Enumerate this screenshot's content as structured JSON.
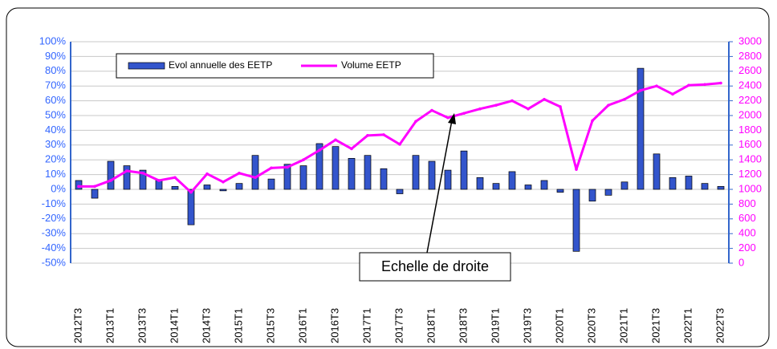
{
  "chart_data": {
    "type": "bar-line",
    "categories": [
      "2012T3",
      null,
      "2013T1",
      null,
      "2013T3",
      null,
      "2014T1",
      null,
      "2014T3",
      null,
      "2015T1",
      null,
      "2015T3",
      null,
      "2016T1",
      null,
      "2016T3",
      null,
      "2017T1",
      null,
      "2017T3",
      null,
      "2018T1",
      null,
      "2018T3",
      null,
      "2019T1",
      null,
      "2019T3",
      null,
      "2020T1",
      null,
      "2020T3",
      null,
      "2021T1",
      null,
      "2021T3",
      null,
      "2022T1",
      null,
      "2022T3"
    ],
    "series": [
      {
        "name": "Evol annuelle des EETP",
        "type": "bar",
        "color": "#3355cc",
        "axis": "y",
        "values": [
          6,
          -6,
          19,
          16,
          13,
          6,
          2,
          -24,
          3,
          -1,
          4,
          23,
          7,
          17,
          16,
          31,
          29,
          21,
          23,
          14,
          -3,
          23,
          19,
          13,
          26,
          8,
          4,
          12,
          3,
          6,
          -2,
          -42,
          -8,
          -4,
          5,
          82,
          24,
          8,
          9,
          4,
          2
        ]
      },
      {
        "name": "Volume EETP",
        "type": "line",
        "color": "#ff00ff",
        "axis": "y2",
        "values": [
          1040,
          1040,
          1120,
          1250,
          1220,
          1120,
          1160,
          960,
          1210,
          1100,
          1220,
          1160,
          1290,
          1300,
          1400,
          1530,
          1670,
          1550,
          1730,
          1740,
          1610,
          1920,
          2070,
          1970,
          2030,
          2090,
          2140,
          2200,
          2090,
          2220,
          2120,
          1270,
          1930,
          2140,
          2220,
          2340,
          2400,
          2290,
          2410,
          2420,
          2440
        ]
      }
    ],
    "ylim": [
      -50,
      100
    ],
    "yticks": [
      {
        "value": -50,
        "label": "-50%"
      },
      {
        "value": -40,
        "label": "-40%"
      },
      {
        "value": -30,
        "label": "-30%"
      },
      {
        "value": -20,
        "label": "-20%"
      },
      {
        "value": -10,
        "label": "-10%"
      },
      {
        "value": 0,
        "label": "0%"
      },
      {
        "value": 10,
        "label": "10%"
      },
      {
        "value": 20,
        "label": "20%"
      },
      {
        "value": 30,
        "label": "30%"
      },
      {
        "value": 40,
        "label": "40%"
      },
      {
        "value": 50,
        "label": "50%"
      },
      {
        "value": 60,
        "label": "60%"
      },
      {
        "value": 70,
        "label": "70%"
      },
      {
        "value": 80,
        "label": "80%"
      },
      {
        "value": 90,
        "label": "90%"
      },
      {
        "value": 100,
        "label": "100%"
      }
    ],
    "y2lim": [
      0,
      3000
    ],
    "y2ticks": [
      0,
      200,
      400,
      600,
      800,
      1000,
      1200,
      1400,
      1600,
      1800,
      2000,
      2200,
      2400,
      2600,
      2800,
      3000
    ],
    "grid": true,
    "legend": "top-left",
    "annotation": "Echelle de droite"
  }
}
